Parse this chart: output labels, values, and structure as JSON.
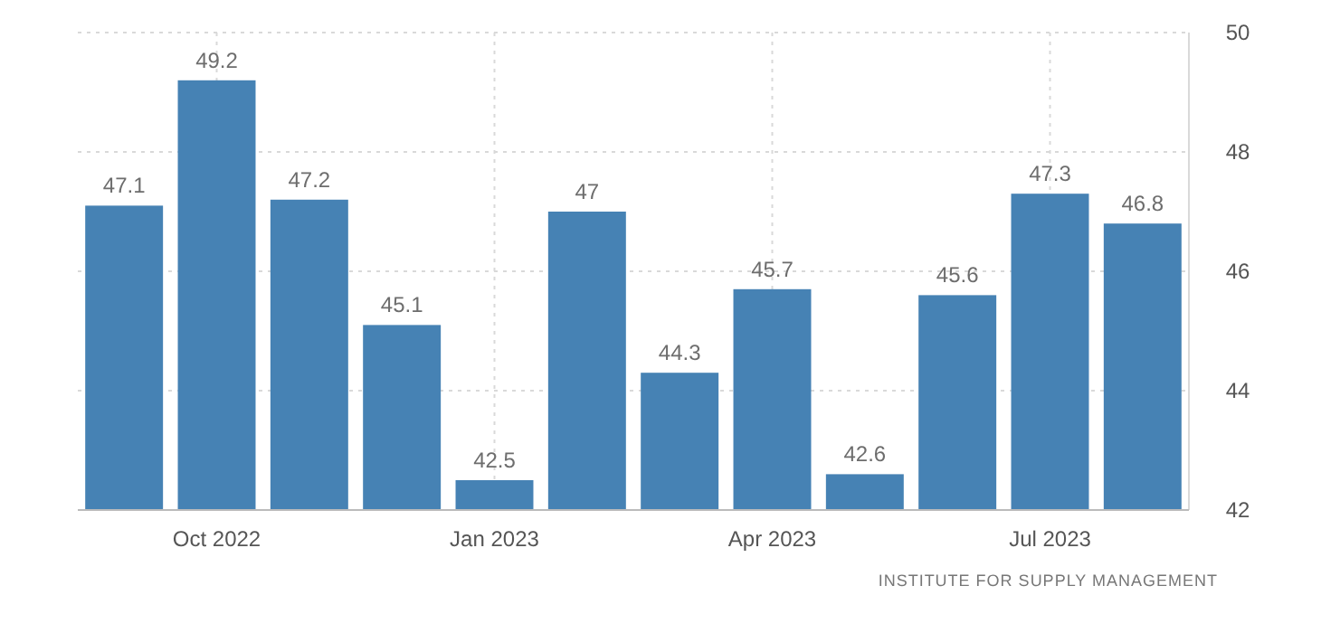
{
  "chart_data": {
    "type": "bar",
    "categories": [
      null,
      "Oct 2022",
      null,
      null,
      "Jan 2023",
      null,
      null,
      "Apr 2023",
      null,
      null,
      "Jul 2023",
      null
    ],
    "values": [
      47.1,
      49.2,
      47.2,
      45.1,
      42.5,
      47,
      44.3,
      45.7,
      42.6,
      45.6,
      47.3,
      46.8
    ],
    "color": "#4682b4",
    "ylim": [
      42,
      50
    ],
    "yticks": [
      42,
      44,
      46,
      48,
      50
    ],
    "grid": true,
    "data_labels": true,
    "annotations": [
      "INSTITUTE FOR SUPPLY MANAGEMENT"
    ]
  }
}
